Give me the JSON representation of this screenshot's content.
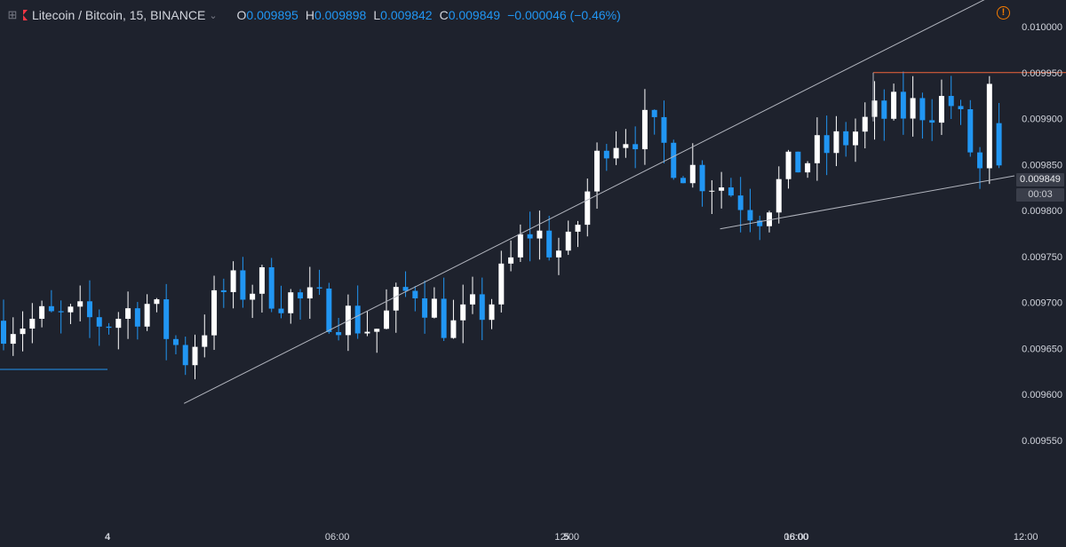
{
  "header": {
    "symbol": "Litecoin / Bitcoin, 15, BINANCE",
    "open_key": "O",
    "open": "0.009895",
    "high_key": "H",
    "high": "0.009898",
    "low_key": "L",
    "low": "0.009842",
    "close_key": "C",
    "close": "0.009849",
    "change": "−0.000046 (−0.46%)"
  },
  "price_axis_labels": [
    "0.010000",
    "0.009950",
    "0.009900",
    "0.009850",
    "0.009800",
    "0.009750",
    "0.009700",
    "0.009650",
    "0.009600",
    "0.009550"
  ],
  "last_price_label": "0.009849",
  "countdown_label": "00:03",
  "time_axis_labels": [
    "4",
    "06:00",
    "12:00",
    "18:00",
    "5",
    "06:00",
    "12:00",
    "18:00"
  ],
  "colors": {
    "background": "#1e222d",
    "up_candle": "#ffffff",
    "down_candle": "#2196f3",
    "horizontal_line_orange": "#f0643c",
    "horizontal_line_blue": "#2196f3",
    "trend_lines": "#b2b5be"
  },
  "chart_data": {
    "type": "candlestick",
    "title": "Litecoin / Bitcoin, 15, BINANCE",
    "timeframe": "15 minutes",
    "ylim": [
      0.00951,
      0.01003
    ],
    "y_ticks": [
      0.01,
      0.00995,
      0.0099,
      0.00985,
      0.0098,
      0.00975,
      0.0097,
      0.00965,
      0.0096,
      0.00955
    ],
    "x_ticks": [
      "4",
      "06:00",
      "12:00",
      "18:00",
      "5",
      "06:00",
      "12:00",
      "18:00"
    ],
    "grid": false,
    "last_close": 0.009849,
    "close_path": [
      [
        "4 00:00",
        0.00968
      ],
      [
        "4 01:00",
        0.0097
      ],
      [
        "4 02:00",
        0.00964
      ],
      [
        "4 03:00",
        0.00971
      ],
      [
        "4 04:00",
        0.00972
      ],
      [
        "4 05:00",
        0.0097
      ],
      [
        "4 06:00",
        0.00969
      ],
      [
        "4 07:00",
        0.00967
      ],
      [
        "4 08:00",
        0.00972
      ],
      [
        "4 09:00",
        0.00967
      ],
      [
        "4 10:00",
        0.0097
      ],
      [
        "4 11:00",
        0.00978
      ],
      [
        "4 12:00",
        0.00975
      ],
      [
        "4 13:00",
        0.00988
      ],
      [
        "4 14:00",
        0.00989
      ],
      [
        "4 15:00",
        0.00985
      ],
      [
        "4 16:00",
        0.00983
      ],
      [
        "4 17:00",
        0.0098
      ],
      [
        "4 18:00",
        0.00985
      ],
      [
        "4 19:00",
        0.00987
      ],
      [
        "4 20:00",
        0.0099
      ],
      [
        "4 21:00",
        0.00991
      ],
      [
        "4 22:00",
        0.00992
      ],
      [
        "4 23:00",
        0.00982
      ],
      [
        "5 00:00",
        0.00987
      ],
      [
        "5 01:00",
        0.00983
      ],
      [
        "5 02:00",
        0.00982
      ],
      [
        "5 03:00",
        0.00986
      ],
      [
        "5 04:00",
        0.00987
      ],
      [
        "5 05:00",
        0.00988
      ],
      [
        "5 06:00",
        0.00986
      ],
      [
        "5 07:00",
        0.00988
      ],
      [
        "5 08:00",
        0.0099
      ],
      [
        "5 09:00",
        0.00993
      ],
      [
        "5 10:00",
        0.0099
      ],
      [
        "5 11:00",
        0.00993
      ],
      [
        "5 11:30",
        0.009849
      ]
    ],
    "drawings": [
      {
        "type": "horizontal_segment",
        "color": "orange",
        "price": 0.00995,
        "from": "4 20:00",
        "to": "5 20:00"
      },
      {
        "type": "horizontal_segment",
        "color": "blue",
        "price": 0.009627,
        "from": "3 18:30",
        "to": "4 00:00"
      },
      {
        "type": "trend_line",
        "from": [
          "4 02:00",
          0.00959
        ],
        "to": [
          "5 10:00",
          0.01001
        ],
        "extended": true
      },
      {
        "type": "trend_line",
        "from": [
          "4 16:00",
          0.00978
        ],
        "to": [
          "5 20:00",
          0.0099
        ],
        "extended": true
      }
    ]
  }
}
